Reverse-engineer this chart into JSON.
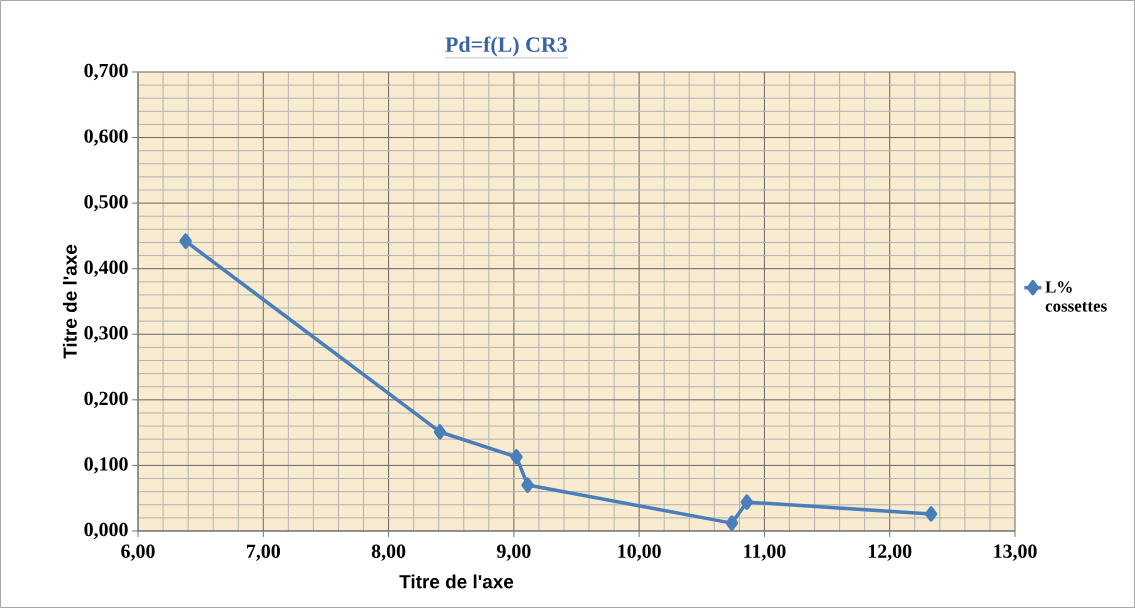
{
  "chart_data": {
    "type": "line",
    "title": "Pd=f(L) CR3",
    "xlabel": "Titre de l'axe",
    "ylabel": "Titre de l'axe",
    "x": [
      6.38,
      8.41,
      9.02,
      9.11,
      10.74,
      10.86,
      12.33
    ],
    "series": [
      {
        "name": "L% cossettes",
        "color": "#4a7ebb",
        "values": [
          0.442,
          0.151,
          0.113,
          0.07,
          0.012,
          0.044,
          0.026
        ]
      }
    ],
    "xlim": [
      6,
      13
    ],
    "xticks": [
      {
        "value": 6,
        "label": "6,00"
      },
      {
        "value": 7,
        "label": "7,00"
      },
      {
        "value": 8,
        "label": "8,00"
      },
      {
        "value": 9,
        "label": "9,00"
      },
      {
        "value": 10,
        "label": "10,00"
      },
      {
        "value": 11,
        "label": "11,00"
      },
      {
        "value": 12,
        "label": "12,00"
      },
      {
        "value": 13,
        "label": "13,00"
      }
    ],
    "ylim": [
      0,
      0.7
    ],
    "yticks": [
      {
        "value": 0,
        "label": "0,000"
      },
      {
        "value": 0.1,
        "label": "0,100"
      },
      {
        "value": 0.2,
        "label": "0,200"
      },
      {
        "value": 0.3,
        "label": "0,300"
      },
      {
        "value": 0.4,
        "label": "0,400"
      },
      {
        "value": 0.5,
        "label": "0,500"
      },
      {
        "value": 0.6,
        "label": "0,600"
      },
      {
        "value": 0.7,
        "label": "0,700"
      }
    ],
    "grid": true,
    "legend": "right",
    "marker": "diamond",
    "line_style": "solid"
  }
}
